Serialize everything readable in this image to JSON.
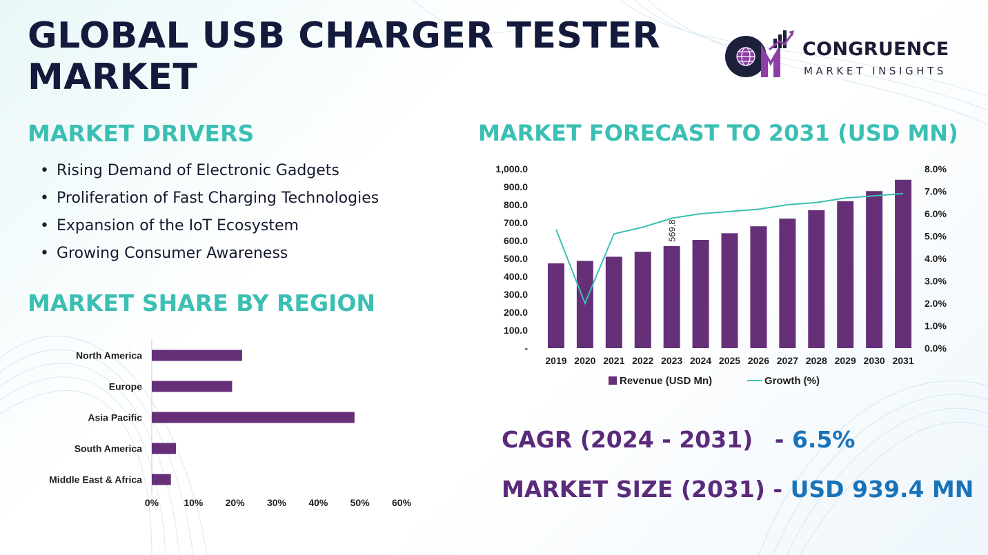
{
  "title_line1": "GLOBAL USB CHARGER TESTER",
  "title_line2": "MARKET",
  "logo": {
    "name": "CONGRUENCE",
    "sub": "MARKET INSIGHTS",
    "mark": "CM"
  },
  "drivers": {
    "heading": "MARKET DRIVERS",
    "items": [
      "Rising Demand of Electronic Gadgets",
      "Proliferation of Fast Charging Technologies",
      "Expansion of the IoT Ecosystem",
      "Growing Consumer Awareness"
    ]
  },
  "region": {
    "heading": "MARKET SHARE BY REGION"
  },
  "forecast": {
    "heading": "MARKET FORECAST TO 2031 (USD MN)"
  },
  "stats": {
    "cagr_label": "CAGR (2024 - 2031)",
    "cagr_sep": " - ",
    "cagr_value": "6.5%",
    "size_label": "MARKET SIZE (2031)",
    "size_sep": " - ",
    "size_value": "USD 939.4 MN"
  },
  "colors": {
    "bar": "#663079",
    "line": "#3bbfb3",
    "accent_teal": "#3bbfb3",
    "accent_blue": "#1a73b8",
    "title": "#141a3b"
  },
  "chart_data": [
    {
      "type": "bar",
      "orientation": "horizontal",
      "categories": [
        "North America",
        "Europe",
        "Asia Pacific",
        "South America",
        "Middle East & Africa"
      ],
      "values": [
        21.7,
        19.3,
        48.7,
        5.8,
        4.6
      ],
      "xlim": [
        0,
        60
      ],
      "xticks": [
        "0%",
        "10%",
        "20%",
        "30%",
        "40%",
        "50%",
        "60%"
      ],
      "grid": false
    },
    {
      "type": "bar",
      "categories": [
        "2019",
        "2020",
        "2021",
        "2022",
        "2023",
        "2024",
        "2025",
        "2026",
        "2027",
        "2028",
        "2029",
        "2030",
        "2031"
      ],
      "series": [
        {
          "name": "Revenue (USD Mn)",
          "type": "bar",
          "axis": "left",
          "values": [
            473,
            487,
            510,
            538,
            569.8,
            604,
            641,
            680,
            723,
            770,
            820,
            876,
            939.4
          ]
        },
        {
          "name": "Growth (%)",
          "type": "line",
          "axis": "right",
          "values": [
            5.3,
            2.0,
            5.1,
            5.4,
            5.8,
            6.0,
            6.1,
            6.2,
            6.4,
            6.5,
            6.7,
            6.8,
            6.9
          ]
        }
      ],
      "ylim": [
        0,
        1000
      ],
      "y_ticks": [
        "-",
        "100.0",
        "200.0",
        "300.0",
        "400.0",
        "500.0",
        "600.0",
        "700.0",
        "800.0",
        "900.0",
        "1,000.0"
      ],
      "y2lim": [
        0,
        8
      ],
      "y2_ticks": [
        "0.0%",
        "1.0%",
        "2.0%",
        "3.0%",
        "4.0%",
        "5.0%",
        "6.0%",
        "7.0%",
        "8.0%"
      ],
      "data_labels": [
        {
          "category": "2023",
          "text": "569.8"
        }
      ],
      "legend": "bottom",
      "grid": false
    }
  ]
}
